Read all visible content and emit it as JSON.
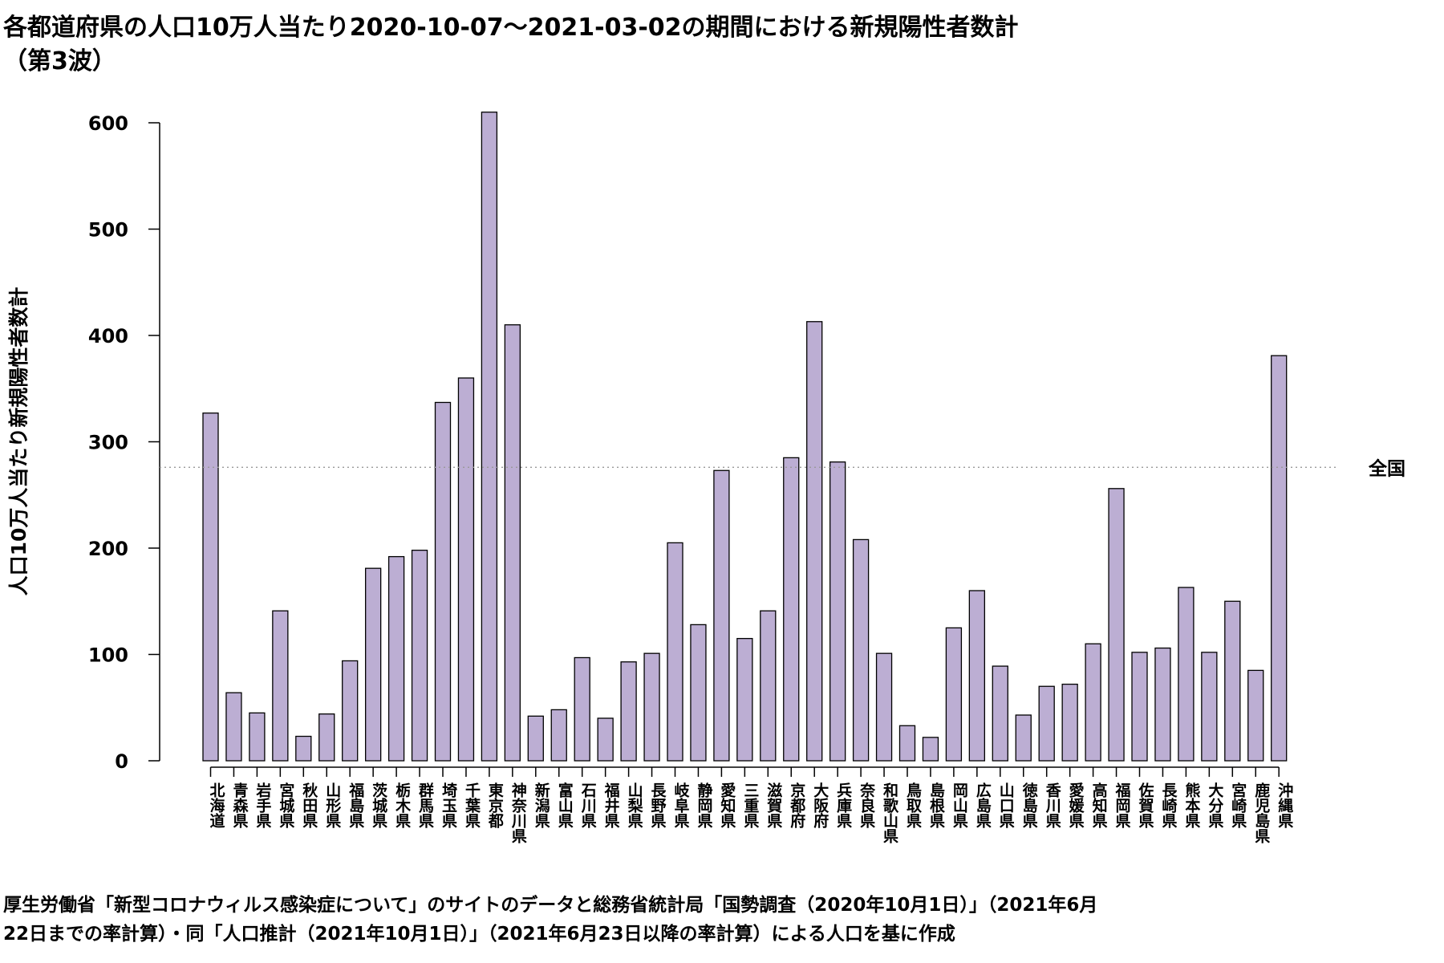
{
  "title": {
    "line1": "各都道府県の人口10万人当たり2020-10-07〜2021-03-02の期間における新規陽性者数計",
    "line2": "（第3波）"
  },
  "footer": {
    "line1": "厚生労働省「新型コロナウィルス感染症について」のサイトのデータと総務省統計局「国勢調査（2020年10月1日）」（2021年6月",
    "line2": "22日までの率計算）・同「人口推計（2021年10月1日）」（2021年6月23日以降の率計算）による人口を基に作成"
  },
  "chart_data": {
    "type": "bar",
    "ylabel": "人口10万人当たり新規陽性者数計",
    "ylim": [
      0,
      600
    ],
    "yticks": [
      0,
      100,
      200,
      300,
      400,
      500,
      600
    ],
    "reference_line": {
      "label": "全国",
      "value": 276
    },
    "colors": {
      "bar_fill": "#bcaed3",
      "bar_stroke": "#000000",
      "ref_line": "#999999"
    },
    "categories": [
      "北海道",
      "青森県",
      "岩手県",
      "宮城県",
      "秋田県",
      "山形県",
      "福島県",
      "茨城県",
      "栃木県",
      "群馬県",
      "埼玉県",
      "千葉県",
      "東京都",
      "神奈川県",
      "新潟県",
      "富山県",
      "石川県",
      "福井県",
      "山梨県",
      "長野県",
      "岐阜県",
      "静岡県",
      "愛知県",
      "三重県",
      "滋賀県",
      "京都府",
      "大阪府",
      "兵庫県",
      "奈良県",
      "和歌山県",
      "鳥取県",
      "島根県",
      "岡山県",
      "広島県",
      "山口県",
      "徳島県",
      "香川県",
      "愛媛県",
      "高知県",
      "福岡県",
      "佐賀県",
      "長崎県",
      "熊本県",
      "大分県",
      "宮崎県",
      "鹿児島県",
      "沖縄県"
    ],
    "values": [
      327,
      64,
      45,
      141,
      23,
      44,
      94,
      181,
      192,
      198,
      337,
      360,
      610,
      410,
      42,
      48,
      97,
      40,
      93,
      101,
      205,
      128,
      273,
      115,
      141,
      285,
      413,
      281,
      208,
      101,
      33,
      22,
      125,
      160,
      89,
      43,
      70,
      72,
      110,
      256,
      102,
      106,
      163,
      102,
      150,
      85,
      381
    ]
  }
}
